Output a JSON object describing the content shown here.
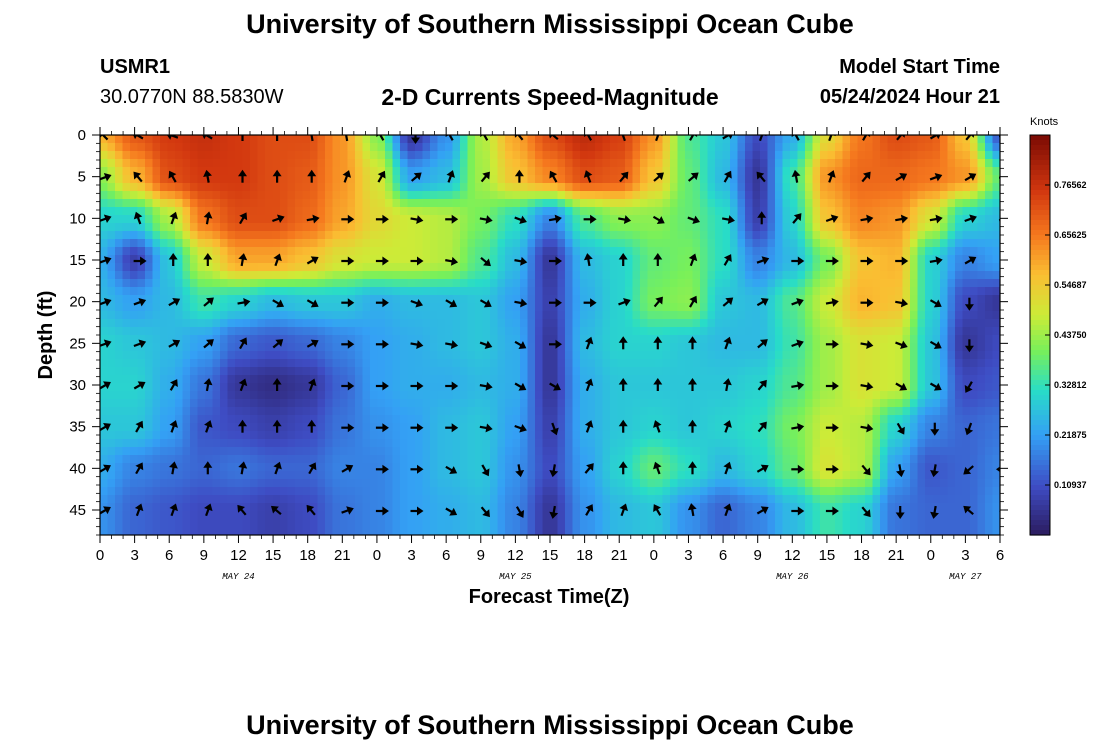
{
  "header": {
    "title": "University of Southern Mississippi Ocean Cube",
    "station": "USMR1",
    "coords": "30.0770N  88.5830W",
    "subtitle": "2-D Currents Speed-Magnitude",
    "model_start_label": "Model Start Time",
    "model_start_value": "05/24/2024 Hour 21"
  },
  "footer": {
    "title": "University of Southern Mississippi Ocean Cube"
  },
  "colors": {
    "low": "#2b1b5e",
    "mid": "#c8e63c",
    "high": "#7a0a04",
    "arrow": "#000000"
  },
  "chart_data": {
    "type": "heatmap",
    "title": "2-D Currents Speed-Magnitude",
    "xlabel": "Forecast Time(Z)",
    "ylabel": "Depth (ft)",
    "ylim": [
      0,
      48
    ],
    "y_inverted": true,
    "yticks": [
      0,
      5,
      10,
      15,
      20,
      25,
      30,
      35,
      40,
      45
    ],
    "xlim": [
      0,
      78
    ],
    "xticks": [
      0,
      3,
      6,
      9,
      12,
      15,
      18,
      21,
      24,
      27,
      30,
      33,
      36,
      39,
      42,
      45,
      48,
      51,
      54,
      57,
      60,
      63,
      66,
      69,
      72,
      75,
      78
    ],
    "xtick_labels": [
      "0",
      "3",
      "6",
      "9",
      "12",
      "15",
      "18",
      "21",
      "0",
      "3",
      "6",
      "9",
      "12",
      "15",
      "18",
      "21",
      "0",
      "3",
      "6",
      "9",
      "12",
      "15",
      "18",
      "21",
      "0",
      "3",
      "6"
    ],
    "date_labels": [
      {
        "hour": 12,
        "text": "MAY 24"
      },
      {
        "hour": 36,
        "text": "MAY 25"
      },
      {
        "hour": 60,
        "text": "MAY 26"
      },
      {
        "hour": 75,
        "text": "MAY 27"
      }
    ],
    "colorbar": {
      "label": "Knots",
      "ticks": [
        "0.76562",
        "0.65625",
        "0.54687",
        "0.43750",
        "0.32812",
        "0.21875",
        "0.10937"
      ],
      "range": [
        0,
        0.875
      ]
    },
    "depths": [
      0,
      5,
      10,
      15,
      20,
      25,
      30,
      35,
      40,
      45
    ],
    "hours": [
      0,
      3,
      6,
      9,
      12,
      15,
      18,
      21,
      24,
      27,
      30,
      33,
      36,
      39,
      42,
      45,
      48,
      51,
      54,
      57,
      60,
      63,
      66,
      69,
      72,
      75,
      78
    ],
    "speed_knots": [
      [
        0.58,
        0.7,
        0.75,
        0.77,
        0.75,
        0.72,
        0.72,
        0.62,
        0.42,
        0.06,
        0.2,
        0.45,
        0.6,
        0.72,
        0.78,
        0.74,
        0.62,
        0.36,
        0.28,
        0.1,
        0.24,
        0.52,
        0.66,
        0.72,
        0.7,
        0.56,
        0.12
      ],
      [
        0.42,
        0.58,
        0.72,
        0.75,
        0.75,
        0.72,
        0.7,
        0.62,
        0.5,
        0.22,
        0.26,
        0.44,
        0.56,
        0.64,
        0.72,
        0.7,
        0.56,
        0.38,
        0.26,
        0.06,
        0.34,
        0.62,
        0.68,
        0.68,
        0.66,
        0.62,
        0.38
      ],
      [
        0.3,
        0.3,
        0.45,
        0.66,
        0.72,
        0.72,
        0.68,
        0.6,
        0.52,
        0.48,
        0.46,
        0.4,
        0.32,
        0.18,
        0.36,
        0.42,
        0.42,
        0.38,
        0.32,
        0.08,
        0.3,
        0.56,
        0.64,
        0.62,
        0.5,
        0.3,
        0.26
      ],
      [
        0.24,
        0.08,
        0.28,
        0.48,
        0.6,
        0.6,
        0.56,
        0.5,
        0.48,
        0.48,
        0.46,
        0.36,
        0.26,
        0.06,
        0.26,
        0.3,
        0.38,
        0.4,
        0.32,
        0.18,
        0.26,
        0.4,
        0.56,
        0.58,
        0.3,
        0.18,
        0.22
      ],
      [
        0.26,
        0.22,
        0.26,
        0.34,
        0.3,
        0.26,
        0.28,
        0.28,
        0.24,
        0.26,
        0.26,
        0.28,
        0.22,
        0.08,
        0.24,
        0.3,
        0.4,
        0.42,
        0.28,
        0.26,
        0.36,
        0.48,
        0.58,
        0.56,
        0.3,
        0.1,
        0.06
      ],
      [
        0.3,
        0.28,
        0.26,
        0.22,
        0.14,
        0.12,
        0.14,
        0.18,
        0.22,
        0.24,
        0.26,
        0.28,
        0.24,
        0.06,
        0.26,
        0.3,
        0.3,
        0.28,
        0.26,
        0.26,
        0.34,
        0.44,
        0.5,
        0.48,
        0.28,
        0.06,
        0.1
      ],
      [
        0.3,
        0.3,
        0.24,
        0.16,
        0.06,
        0.04,
        0.06,
        0.14,
        0.22,
        0.24,
        0.24,
        0.26,
        0.24,
        0.06,
        0.24,
        0.28,
        0.28,
        0.28,
        0.28,
        0.3,
        0.36,
        0.44,
        0.5,
        0.48,
        0.28,
        0.1,
        0.12
      ],
      [
        0.28,
        0.28,
        0.22,
        0.12,
        0.1,
        0.08,
        0.1,
        0.16,
        0.2,
        0.22,
        0.26,
        0.28,
        0.22,
        0.08,
        0.24,
        0.28,
        0.3,
        0.28,
        0.3,
        0.32,
        0.4,
        0.48,
        0.46,
        0.3,
        0.18,
        0.14,
        0.16
      ],
      [
        0.24,
        0.18,
        0.16,
        0.14,
        0.16,
        0.14,
        0.14,
        0.18,
        0.18,
        0.22,
        0.26,
        0.28,
        0.2,
        0.1,
        0.22,
        0.3,
        0.38,
        0.32,
        0.26,
        0.3,
        0.38,
        0.5,
        0.46,
        0.22,
        0.12,
        0.14,
        0.18
      ],
      [
        0.2,
        0.14,
        0.12,
        0.1,
        0.1,
        0.08,
        0.1,
        0.16,
        0.18,
        0.22,
        0.24,
        0.26,
        0.18,
        0.06,
        0.2,
        0.26,
        0.28,
        0.2,
        0.14,
        0.18,
        0.26,
        0.34,
        0.3,
        0.16,
        0.14,
        0.14,
        0.2
      ]
    ],
    "direction_deg": [
      [
        135,
        120,
        110,
        120,
        180,
        180,
        170,
        170,
        150,
        0,
        150,
        150,
        140,
        130,
        150,
        160,
        200,
        210,
        240,
        200,
        150,
        200,
        210,
        220,
        240,
        220,
        270
      ],
      [
        250,
        140,
        150,
        170,
        180,
        180,
        180,
        200,
        210,
        230,
        200,
        220,
        180,
        150,
        160,
        220,
        230,
        230,
        210,
        140,
        170,
        200,
        220,
        240,
        250,
        240,
        270
      ],
      [
        250,
        160,
        200,
        190,
        210,
        250,
        260,
        270,
        270,
        280,
        270,
        280,
        290,
        260,
        270,
        280,
        300,
        290,
        280,
        180,
        220,
        250,
        260,
        260,
        260,
        250,
        260
      ],
      [
        250,
        270,
        180,
        180,
        190,
        200,
        240,
        270,
        270,
        270,
        280,
        310,
        280,
        270,
        170,
        180,
        180,
        200,
        210,
        250,
        270,
        270,
        270,
        270,
        260,
        240,
        200
      ],
      [
        250,
        250,
        240,
        230,
        260,
        300,
        300,
        270,
        270,
        290,
        300,
        300,
        280,
        270,
        270,
        250,
        220,
        210,
        230,
        240,
        250,
        260,
        270,
        280,
        300,
        0,
        0
      ],
      [
        250,
        250,
        240,
        230,
        210,
        230,
        240,
        270,
        270,
        280,
        280,
        290,
        300,
        270,
        200,
        180,
        180,
        180,
        200,
        230,
        250,
        270,
        280,
        290,
        300,
        0,
        0
      ],
      [
        240,
        240,
        210,
        190,
        200,
        180,
        200,
        270,
        270,
        270,
        270,
        280,
        300,
        300,
        200,
        180,
        180,
        180,
        190,
        220,
        260,
        270,
        280,
        300,
        300,
        30,
        30
      ],
      [
        240,
        210,
        200,
        200,
        180,
        180,
        180,
        270,
        270,
        270,
        270,
        280,
        290,
        340,
        200,
        180,
        160,
        180,
        200,
        220,
        260,
        270,
        280,
        330,
        0,
        20,
        20
      ],
      [
        240,
        210,
        190,
        180,
        190,
        200,
        210,
        240,
        270,
        270,
        300,
        330,
        350,
        10,
        220,
        180,
        160,
        180,
        200,
        240,
        270,
        270,
        320,
        350,
        10,
        50,
        90
      ],
      [
        240,
        200,
        200,
        200,
        140,
        130,
        140,
        250,
        270,
        270,
        300,
        320,
        330,
        10,
        210,
        200,
        150,
        170,
        200,
        240,
        270,
        270,
        320,
        0,
        10,
        130,
        150
      ]
    ]
  }
}
